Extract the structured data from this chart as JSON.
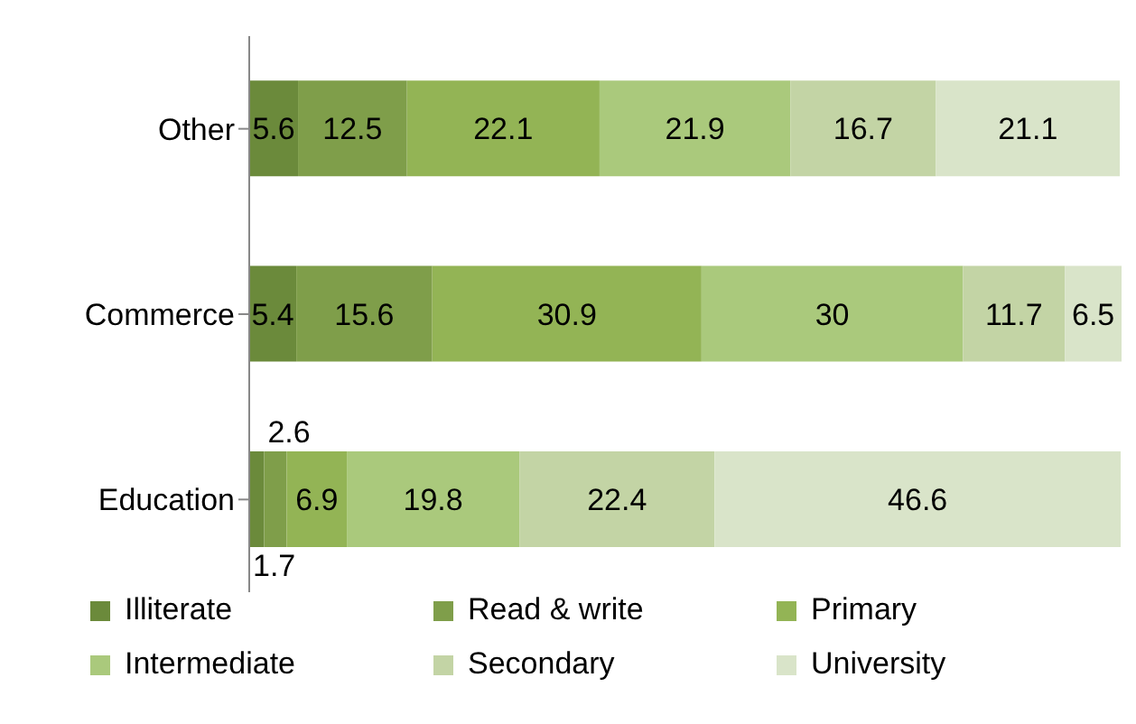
{
  "chart_data": {
    "type": "bar",
    "orientation": "horizontal",
    "stacked": true,
    "data_labels": true,
    "legend": "bottom",
    "grid": false,
    "categories": [
      "Other",
      "Commerce",
      "Education"
    ],
    "series": [
      {
        "name": "Illiterate",
        "color": "#6b8a3b",
        "values": [
          5.6,
          5.4,
          1.7
        ]
      },
      {
        "name": "Read & write",
        "color": "#7f9e4a",
        "values": [
          12.5,
          15.6,
          2.6
        ]
      },
      {
        "name": "Primary",
        "color": "#93b455",
        "values": [
          22.1,
          30.9,
          6.9
        ]
      },
      {
        "name": "Intermediate",
        "color": "#aac97c",
        "values": [
          21.9,
          30,
          19.8
        ]
      },
      {
        "name": "Secondary",
        "color": "#c3d4a5",
        "values": [
          16.7,
          11.7,
          22.4
        ]
      },
      {
        "name": "University",
        "color": "#d9e4c9",
        "values": [
          21.1,
          6.5,
          46.6
        ]
      }
    ]
  }
}
